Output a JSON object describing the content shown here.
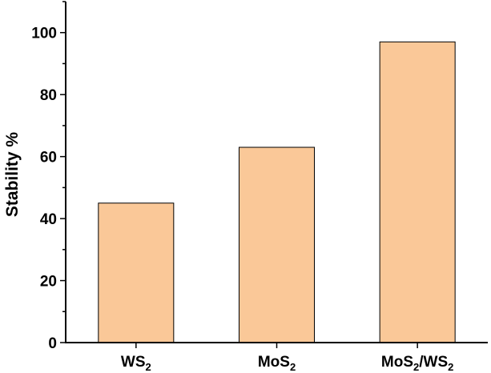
{
  "chart_data": {
    "type": "bar",
    "categories": [
      {
        "base": "WS",
        "sub": "2",
        "tail": "",
        "sub2": ""
      },
      {
        "base": "MoS",
        "sub": "2",
        "tail": "",
        "sub2": ""
      },
      {
        "base": "MoS",
        "sub": "2",
        "tail": "/WS",
        "sub2": "2"
      }
    ],
    "values": [
      45,
      63,
      97
    ],
    "ylabel": "Stability %",
    "ylim": [
      0,
      110
    ],
    "yticks": [
      0,
      20,
      40,
      60,
      80,
      100
    ],
    "y_minor_step": 10,
    "grid": false,
    "legend": "none"
  },
  "colors": {
    "bar_fill": "#fac898",
    "bar_stroke": "#000000",
    "axis": "#000000"
  }
}
